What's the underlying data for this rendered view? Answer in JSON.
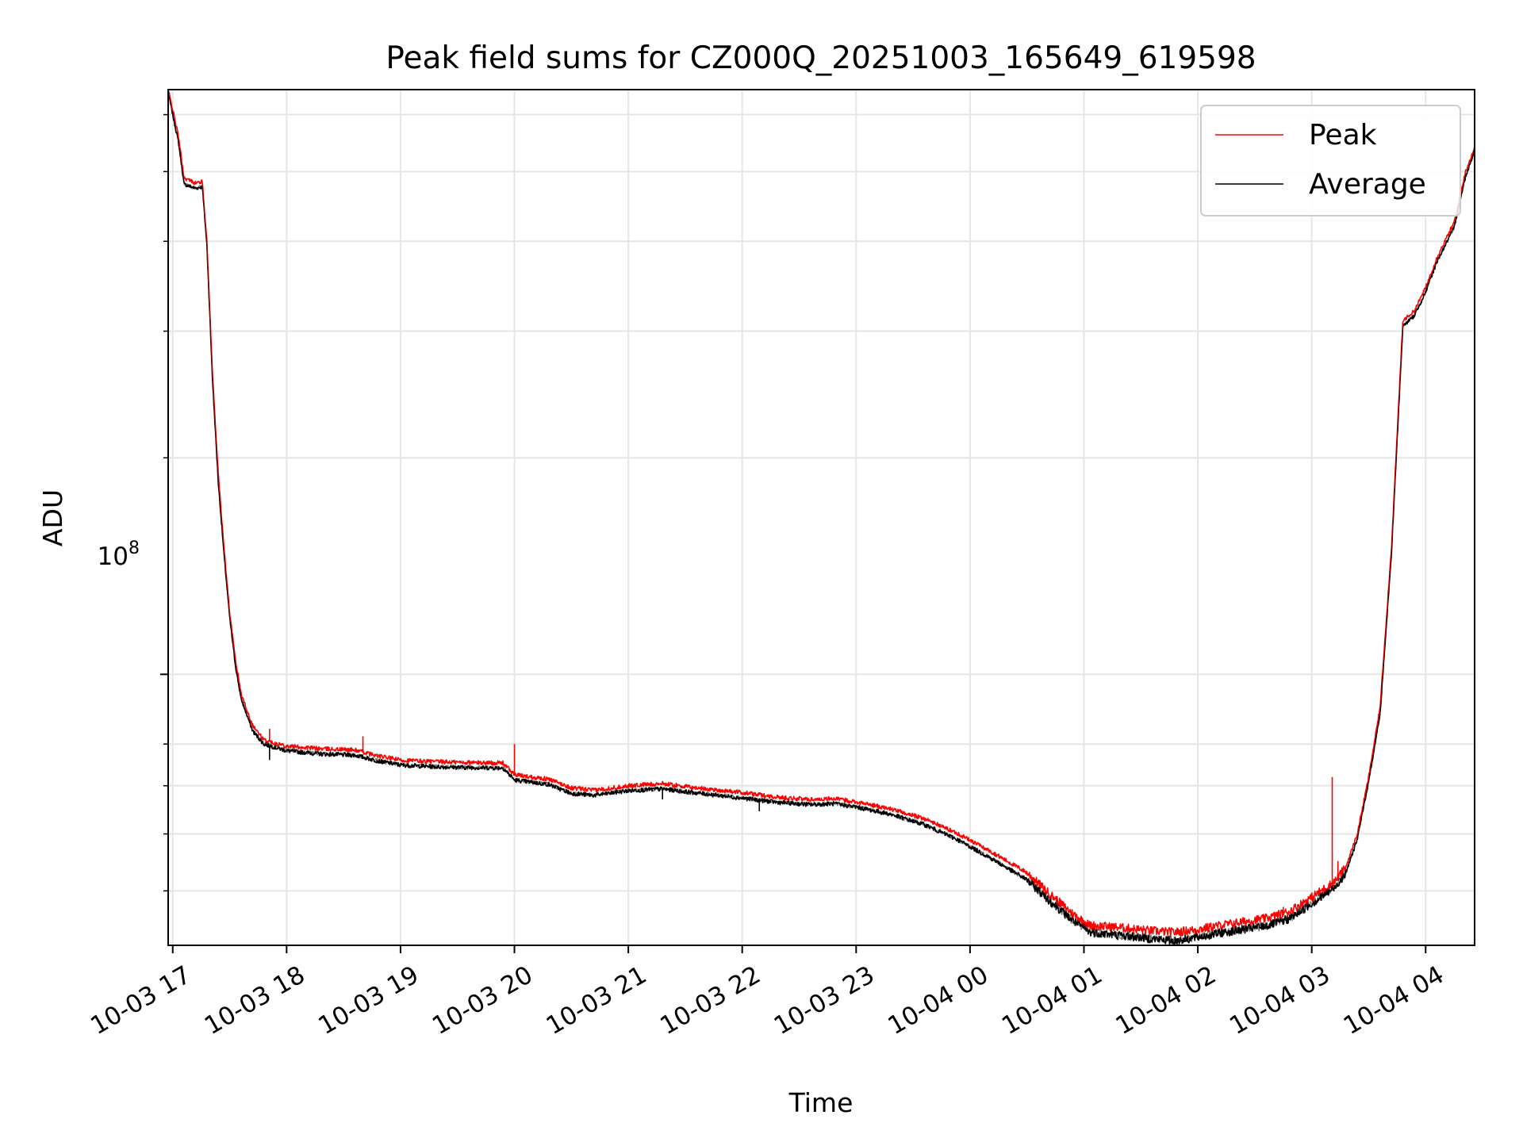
{
  "chart_data": {
    "type": "line",
    "title": "Peak field sums for CZ000Q_20251003_165649_619598",
    "xlabel": "Time",
    "ylabel": "ADU",
    "y_scale": "log",
    "y_tick_label": {
      "base": "10",
      "exp": "8"
    },
    "x_ticks": [
      "10-03 17",
      "10-03 18",
      "10-03 19",
      "10-03 20",
      "10-03 21",
      "10-03 22",
      "10-03 23",
      "10-04 00",
      "10-04 01",
      "10-04 02",
      "10-04 03",
      "10-04 04"
    ],
    "x_range_hours": [
      16.96,
      28.43
    ],
    "ylim": [
      42000000,
      650000000
    ],
    "grid": true,
    "legend_position": "top-right",
    "colors": {
      "Peak": "#ff0000",
      "Average": "#000000"
    },
    "series": [
      {
        "name": "Peak",
        "points": [
          [
            16.96,
            650000000
          ],
          [
            17.0,
            610000000
          ],
          [
            17.05,
            560000000
          ],
          [
            17.1,
            490000000
          ],
          [
            17.2,
            482000000
          ],
          [
            17.26,
            484000000
          ],
          [
            17.3,
            400000000
          ],
          [
            17.35,
            260000000
          ],
          [
            17.4,
            190000000
          ],
          [
            17.45,
            150000000
          ],
          [
            17.5,
            122000000
          ],
          [
            17.55,
            105000000
          ],
          [
            17.6,
            94000000
          ],
          [
            17.7,
            85000000
          ],
          [
            17.8,
            81000000
          ],
          [
            18.0,
            79500000
          ],
          [
            18.3,
            78800000
          ],
          [
            18.6,
            78500000
          ],
          [
            18.8,
            77000000
          ],
          [
            19.0,
            76000000
          ],
          [
            19.3,
            75600000
          ],
          [
            19.6,
            75400000
          ],
          [
            19.9,
            75300000
          ],
          [
            20.0,
            72500000
          ],
          [
            20.3,
            71500000
          ],
          [
            20.5,
            69500000
          ],
          [
            20.7,
            69000000
          ],
          [
            21.0,
            70000000
          ],
          [
            21.3,
            70500000
          ],
          [
            21.6,
            69500000
          ],
          [
            22.0,
            68500000
          ],
          [
            22.3,
            67500000
          ],
          [
            22.6,
            67000000
          ],
          [
            22.8,
            67200000
          ],
          [
            23.0,
            66500000
          ],
          [
            23.3,
            65000000
          ],
          [
            23.6,
            63000000
          ],
          [
            23.9,
            60000000
          ],
          [
            24.2,
            56500000
          ],
          [
            24.5,
            53000000
          ],
          [
            24.7,
            49500000
          ],
          [
            24.9,
            46500000
          ],
          [
            25.05,
            44800000
          ],
          [
            25.3,
            44500000
          ],
          [
            25.6,
            44000000
          ],
          [
            25.8,
            43800000
          ],
          [
            26.0,
            44200000
          ],
          [
            26.2,
            44800000
          ],
          [
            26.4,
            45300000
          ],
          [
            26.6,
            45800000
          ],
          [
            26.8,
            46800000
          ],
          [
            27.0,
            49000000
          ],
          [
            27.2,
            51500000
          ],
          [
            27.3,
            54000000
          ],
          [
            27.4,
            60000000
          ],
          [
            27.5,
            72000000
          ],
          [
            27.6,
            90000000
          ],
          [
            27.7,
            150000000
          ],
          [
            27.8,
            310000000
          ],
          [
            27.9,
            320000000
          ],
          [
            28.0,
            345000000
          ],
          [
            28.1,
            380000000
          ],
          [
            28.25,
            425000000
          ],
          [
            28.35,
            500000000
          ],
          [
            28.43,
            540000000
          ]
        ],
        "spikes": [
          [
            17.85,
            84000000
          ],
          [
            18.67,
            82000000
          ],
          [
            20.0,
            80000000
          ],
          [
            26.75,
            47500000
          ],
          [
            27.18,
            72000000
          ],
          [
            27.23,
            55000000
          ]
        ]
      },
      {
        "name": "Average",
        "points": [
          [
            16.96,
            645000000
          ],
          [
            17.0,
            600000000
          ],
          [
            17.05,
            550000000
          ],
          [
            17.1,
            480000000
          ],
          [
            17.2,
            474000000
          ],
          [
            17.26,
            476000000
          ],
          [
            17.3,
            395000000
          ],
          [
            17.35,
            255000000
          ],
          [
            17.4,
            185000000
          ],
          [
            17.45,
            147000000
          ],
          [
            17.5,
            120000000
          ],
          [
            17.55,
            103000000
          ],
          [
            17.6,
            92500000
          ],
          [
            17.7,
            83500000
          ],
          [
            17.8,
            80000000
          ],
          [
            18.0,
            78300000
          ],
          [
            18.3,
            77500000
          ],
          [
            18.6,
            77200000
          ],
          [
            18.8,
            75800000
          ],
          [
            19.0,
            74800000
          ],
          [
            19.3,
            74400000
          ],
          [
            19.6,
            74200000
          ],
          [
            19.9,
            74100000
          ],
          [
            20.0,
            71300000
          ],
          [
            20.3,
            70300000
          ],
          [
            20.5,
            68300000
          ],
          [
            20.7,
            67900000
          ],
          [
            21.0,
            68900000
          ],
          [
            21.3,
            69300000
          ],
          [
            21.6,
            68400000
          ],
          [
            22.0,
            67300000
          ],
          [
            22.3,
            66400000
          ],
          [
            22.6,
            65900000
          ],
          [
            22.8,
            66100000
          ],
          [
            23.0,
            65400000
          ],
          [
            23.3,
            63900000
          ],
          [
            23.6,
            61800000
          ],
          [
            23.9,
            58800000
          ],
          [
            24.2,
            55300000
          ],
          [
            24.5,
            51800000
          ],
          [
            24.7,
            48400000
          ],
          [
            24.9,
            45500000
          ],
          [
            25.05,
            43800000
          ],
          [
            25.3,
            43400000
          ],
          [
            25.6,
            42900000
          ],
          [
            25.8,
            42600000
          ],
          [
            26.0,
            43100000
          ],
          [
            26.2,
            43700000
          ],
          [
            26.4,
            44200000
          ],
          [
            26.6,
            44700000
          ],
          [
            26.8,
            45700000
          ],
          [
            27.0,
            48000000
          ],
          [
            27.2,
            50500000
          ],
          [
            27.3,
            53000000
          ],
          [
            27.4,
            59000000
          ],
          [
            27.5,
            71000000
          ],
          [
            27.6,
            88000000
          ],
          [
            27.7,
            147000000
          ],
          [
            27.8,
            305000000
          ],
          [
            27.9,
            315000000
          ],
          [
            28.0,
            340000000
          ],
          [
            28.1,
            375000000
          ],
          [
            28.25,
            418000000
          ],
          [
            28.35,
            492000000
          ],
          [
            28.43,
            535000000
          ]
        ],
        "spikes": [
          [
            17.85,
            76000000
          ],
          [
            18.67,
            76800000
          ],
          [
            21.3,
            67000000
          ],
          [
            22.15,
            64500000
          ]
        ]
      }
    ]
  }
}
